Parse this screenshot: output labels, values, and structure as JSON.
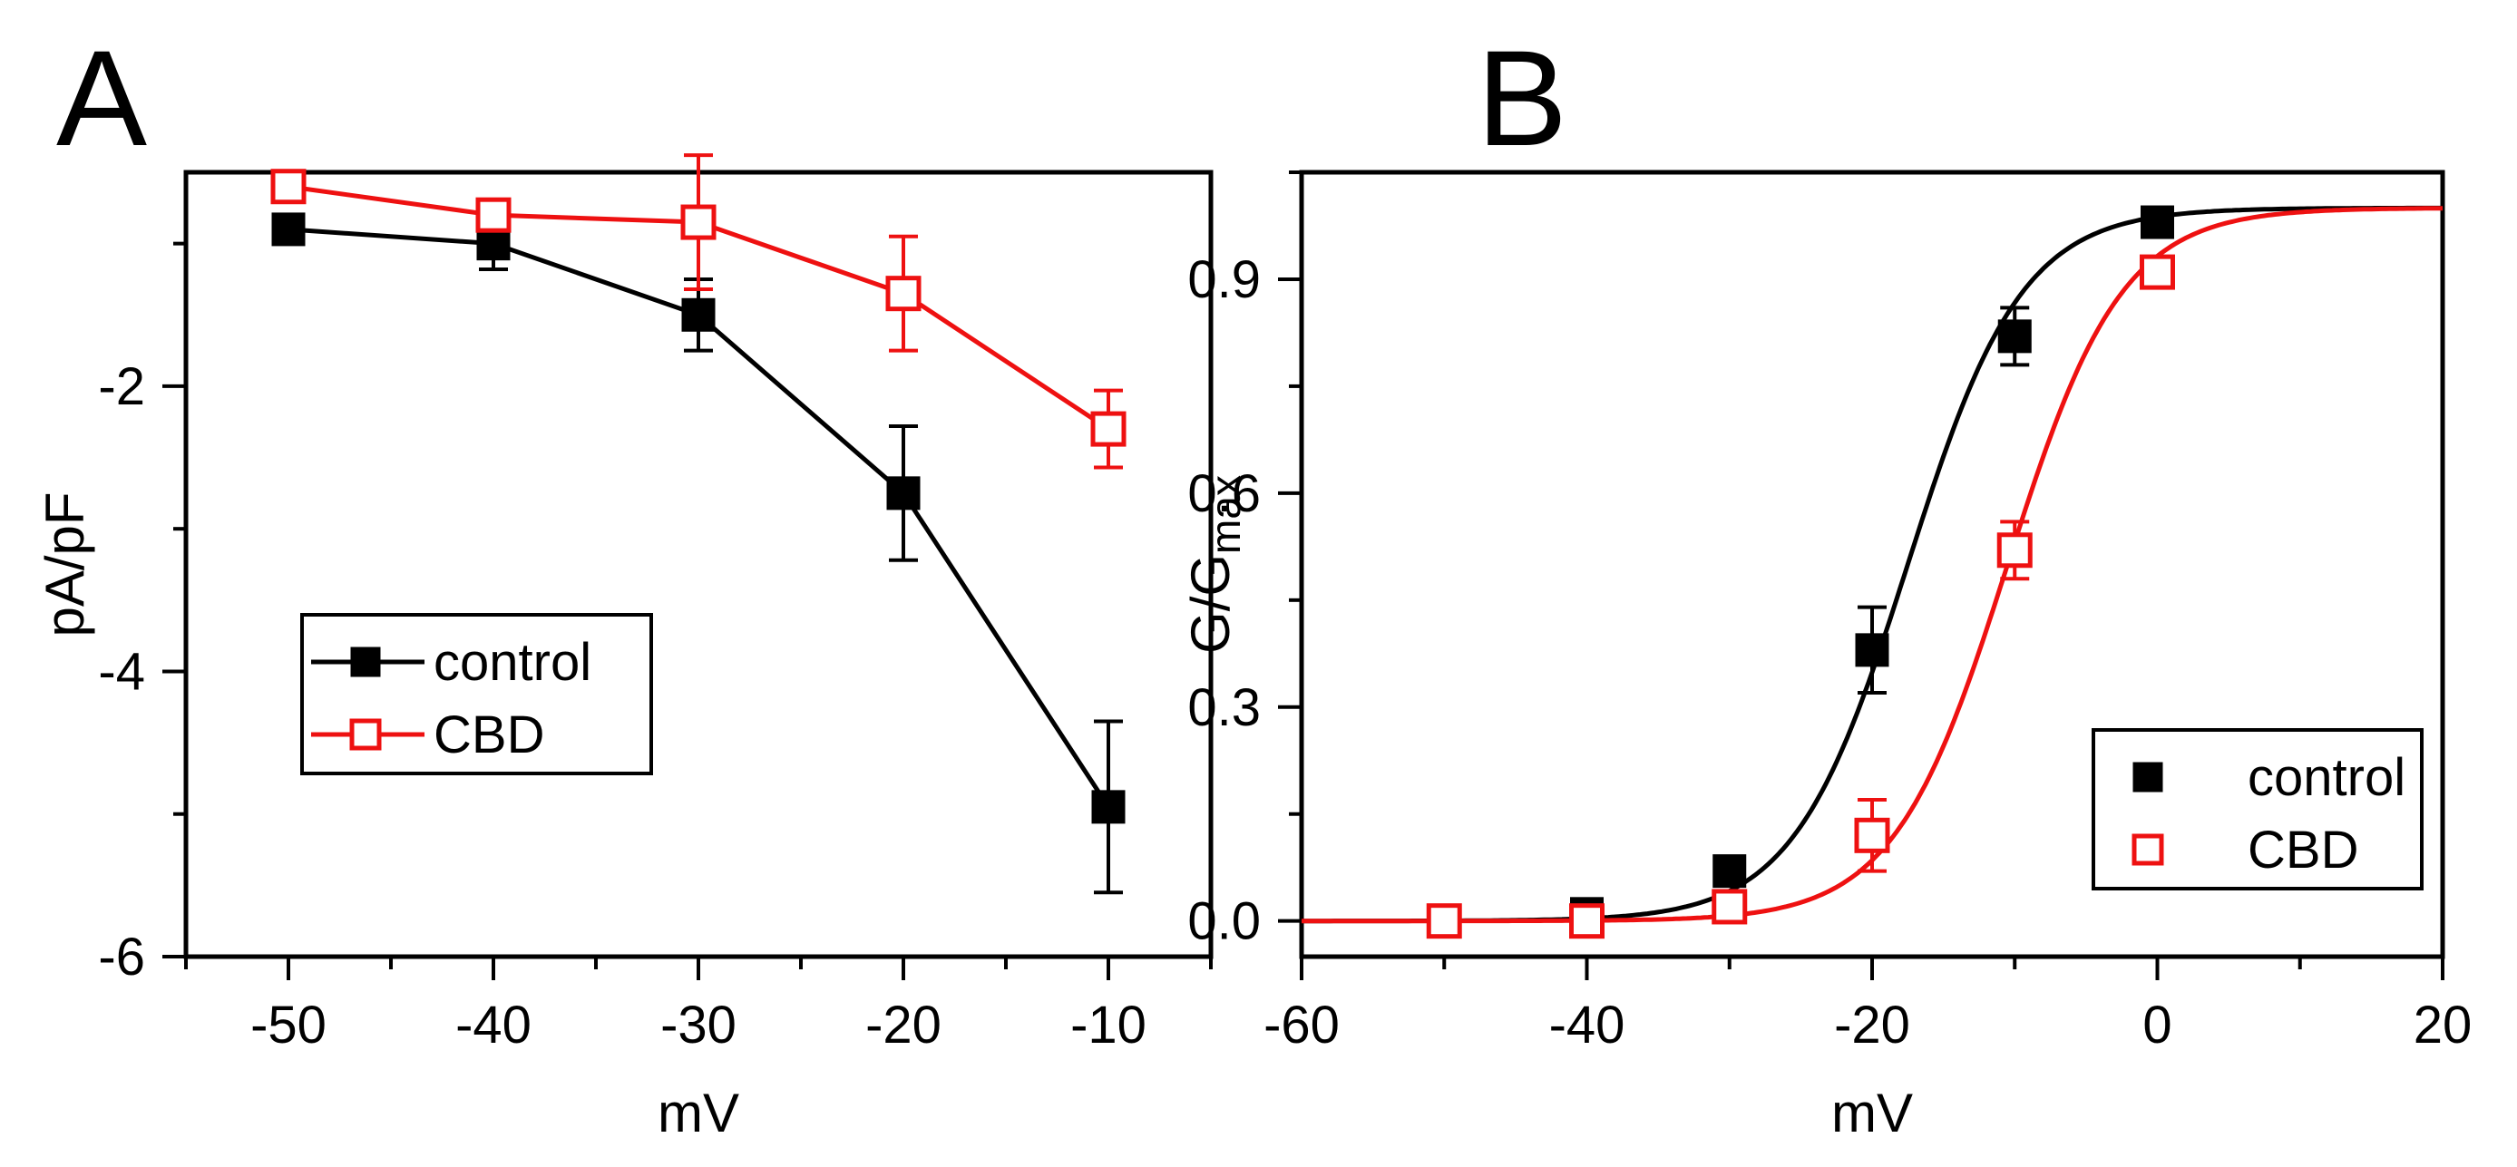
{
  "chart_data": [
    {
      "panel": "A",
      "type": "line",
      "title": "",
      "xlabel": "mV",
      "ylabel": "pA/pF",
      "xlim": [
        -55,
        -5
      ],
      "ylim": [
        -6,
        -0.5
      ],
      "xticks": [
        -50,
        -40,
        -30,
        -20,
        -10
      ],
      "xtick_labels": [
        "-50",
        "-40",
        "-30",
        "-20",
        "-10"
      ],
      "yticks": [
        -6,
        -4,
        -2
      ],
      "ytick_labels": [
        "-6",
        "-4",
        "-2"
      ],
      "x": [
        -50,
        -40,
        -30,
        -20,
        -10
      ],
      "series": [
        {
          "name": "control",
          "color": "#000000",
          "marker": "filled-square",
          "values": [
            -0.9,
            -1.0,
            -1.5,
            -2.75,
            -4.95
          ],
          "errors": [
            0.1,
            0.18,
            0.25,
            0.47,
            0.6
          ]
        },
        {
          "name": "CBD",
          "color": "#ee1111",
          "marker": "open-square",
          "values": [
            -0.6,
            -0.8,
            -0.85,
            -1.35,
            -2.3
          ],
          "errors": [
            0.05,
            0.1,
            0.47,
            0.4,
            0.27
          ]
        }
      ],
      "legend": [
        "control",
        "CBD"
      ],
      "legend_position": "bottom-left"
    },
    {
      "panel": "B",
      "type": "scatter",
      "title": "",
      "xlabel": "mV",
      "ylabel": "G/G",
      "ylabel_subscript": "max",
      "xlim": [
        -60,
        20
      ],
      "ylim": [
        -0.05,
        1.05
      ],
      "xticks": [
        -60,
        -40,
        -20,
        0,
        20
      ],
      "xtick_labels": [
        "-60",
        "-40",
        "-20",
        "0",
        "20"
      ],
      "yticks": [
        0.0,
        0.3,
        0.6,
        0.9
      ],
      "ytick_labels": [
        "0.0",
        "0.3",
        "0.6",
        "0.9"
      ],
      "x": [
        -50,
        -40,
        -30,
        -20,
        -10,
        0
      ],
      "series": [
        {
          "name": "control",
          "color": "#000000",
          "marker": "filled-square",
          "values": [
            0.0,
            0.01,
            0.07,
            0.38,
            0.82,
            0.98
          ],
          "errors": [
            0.0,
            0.0,
            0.01,
            0.06,
            0.04,
            0.01
          ],
          "fit": {
            "model": "boltzmann",
            "v_half": -17.5,
            "k": 4.0
          }
        },
        {
          "name": "CBD",
          "color": "#ee1111",
          "marker": "open-square",
          "values": [
            0.0,
            0.0,
            0.02,
            0.12,
            0.52,
            0.91
          ],
          "errors": [
            0.0,
            0.0,
            0.01,
            0.05,
            0.04,
            0.01
          ],
          "fit": {
            "model": "boltzmann",
            "v_half": -10.5,
            "k": 4.0
          }
        }
      ],
      "legend": [
        "control",
        "CBD"
      ],
      "legend_position": "bottom-right"
    }
  ]
}
